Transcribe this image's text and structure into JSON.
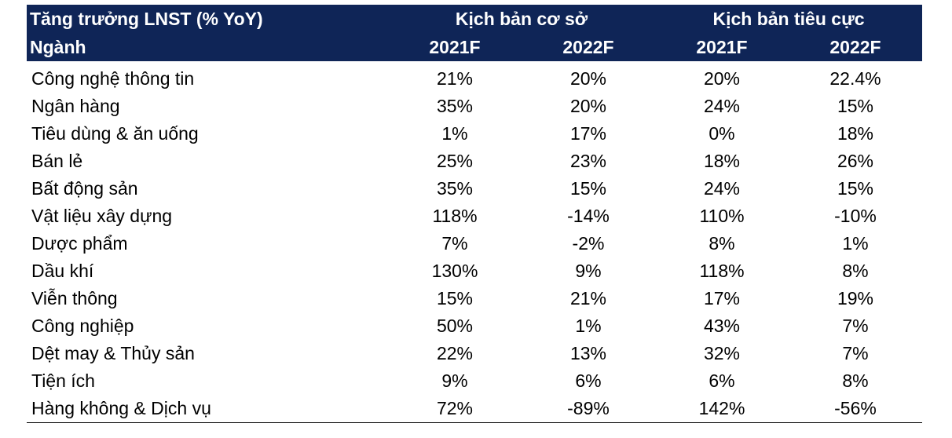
{
  "header": {
    "title": "Tăng trưởng LNST (% YoY)",
    "sector_label": "Ngành",
    "scenario_base": "Kịch bản cơ sở",
    "scenario_negative": "Kịch bản tiêu cực",
    "years": [
      "2021F",
      "2022F",
      "2021F",
      "2022F"
    ]
  },
  "rows": [
    {
      "sector": "Công nghệ thông tin",
      "values": [
        "21%",
        "20%",
        "20%",
        "22.4%"
      ]
    },
    {
      "sector": "Ngân hàng",
      "values": [
        "35%",
        "20%",
        "24%",
        "15%"
      ]
    },
    {
      "sector": "Tiêu dùng & ăn uống",
      "values": [
        "1%",
        "17%",
        "0%",
        "18%"
      ]
    },
    {
      "sector": "Bán lẻ",
      "values": [
        "25%",
        "23%",
        "18%",
        "26%"
      ]
    },
    {
      "sector": "Bất động sản",
      "values": [
        "35%",
        "15%",
        "24%",
        "15%"
      ]
    },
    {
      "sector": "Vật liệu xây dựng",
      "values": [
        "118%",
        "-14%",
        "110%",
        "-10%"
      ]
    },
    {
      "sector": "Dược phẩm",
      "values": [
        "7%",
        "-2%",
        "8%",
        "1%"
      ]
    },
    {
      "sector": "Dầu khí",
      "values": [
        "130%",
        "9%",
        "118%",
        "8%"
      ]
    },
    {
      "sector": "Viễn thông",
      "values": [
        "15%",
        "21%",
        "17%",
        "19%"
      ]
    },
    {
      "sector": "Công nghiệp",
      "values": [
        "50%",
        "1%",
        "43%",
        "7%"
      ]
    },
    {
      "sector": "Dệt may & Thủy sản",
      "values": [
        "22%",
        "13%",
        "32%",
        "7%"
      ]
    },
    {
      "sector": "Tiện ích",
      "values": [
        "9%",
        "6%",
        "6%",
        "8%"
      ]
    },
    {
      "sector": "Hàng không & Dịch vụ",
      "values": [
        "72%",
        "-89%",
        "142%",
        "-56%"
      ]
    }
  ]
}
